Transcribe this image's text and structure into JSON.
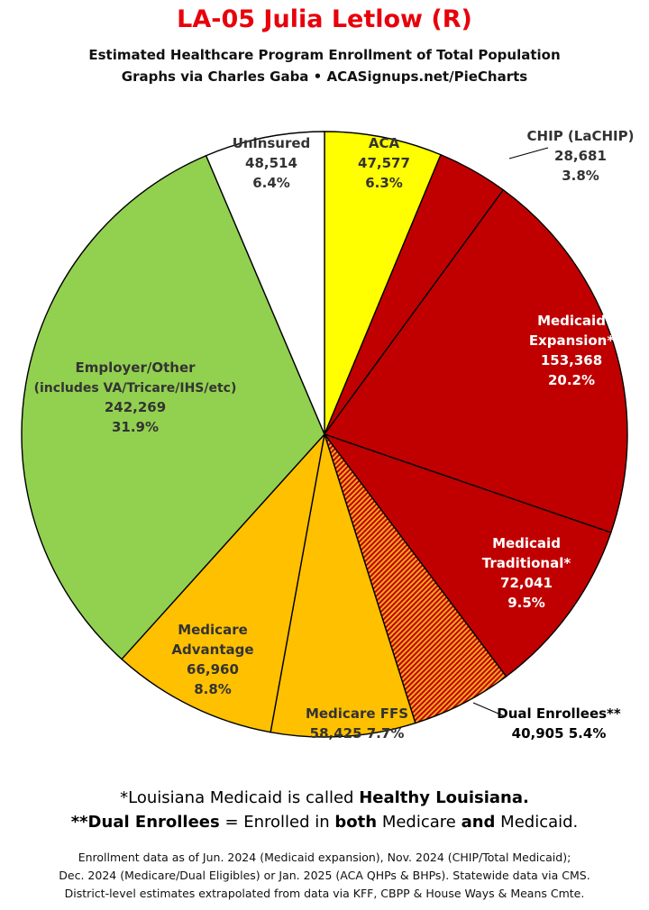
{
  "title": "LA-05 Julia Letlow (R)",
  "subtitle_line1": "Estimated Healthcare Program Enrollment of Total Population",
  "subtitle_line2": "Graphs via Charles Gaba  •  ACASignups.net/PieCharts",
  "chart_data": {
    "type": "pie",
    "start_angle": "top, clockwise",
    "slices": [
      {
        "name": "ACA",
        "label_lines": [
          "ACA"
        ],
        "value": 47577,
        "value_text": "47,577",
        "percent": "6.3%",
        "color": "#ffff00",
        "text_color": "#333333",
        "pattern": "none"
      },
      {
        "name": "CHIP (LaCHIP)",
        "label_lines": [
          "CHIP (LaCHIP)"
        ],
        "value": 28681,
        "value_text": "28,681",
        "percent": "3.8%",
        "color": "#c00000",
        "text_color": "#333333",
        "pattern": "none"
      },
      {
        "name": "Medicaid Expansion*",
        "label_lines": [
          "Medicaid",
          "Expansion*"
        ],
        "value": 153368,
        "value_text": "153,368",
        "percent": "20.2%",
        "color": "#c00000",
        "text_color": "#ffffff",
        "pattern": "none"
      },
      {
        "name": "Medicaid Traditional*",
        "label_lines": [
          "Medicaid",
          "Traditional*"
        ],
        "value": 72041,
        "value_text": "72,041",
        "percent": "9.5%",
        "color": "#c00000",
        "text_color": "#ffffff",
        "pattern": "none"
      },
      {
        "name": "Dual Enrollees**",
        "label_lines": [
          "Dual Enrollees**"
        ],
        "value": 40905,
        "value_text": "40,905",
        "percent": "5.4%",
        "color": "#c00000",
        "text_color": "#000000",
        "pattern": "stripes-orange"
      },
      {
        "name": "Medicare FFS",
        "label_lines": [
          "Medicare FFS"
        ],
        "value": 58425,
        "value_text": "58,425",
        "percent": "7.7%",
        "color": "#ffc000",
        "text_color": "#333333",
        "pattern": "none"
      },
      {
        "name": "Medicare Advantage",
        "label_lines": [
          "Medicare",
          "Advantage"
        ],
        "value": 66960,
        "value_text": "66,960",
        "percent": "8.8%",
        "color": "#ffc000",
        "text_color": "#333333",
        "pattern": "none"
      },
      {
        "name": "Employer/Other (includes VA/Tricare/IHS/etc)",
        "label_lines": [
          "Employer/Other",
          "(includes VA/Tricare/IHS/etc)"
        ],
        "value": 242269,
        "value_text": "242,269",
        "percent": "31.9%",
        "color": "#92d050",
        "text_color": "#333333",
        "pattern": "none"
      },
      {
        "name": "Uninsured",
        "label_lines": [
          "Uninsured"
        ],
        "value": 48514,
        "value_text": "48,514",
        "percent": "6.4%",
        "color": "#ffffff",
        "text_color": "#333333",
        "pattern": "none"
      }
    ]
  },
  "footnotes": {
    "line1_a": "*Louisiana Medicaid is called ",
    "line1_b": "Healthy Louisiana.",
    "line2_a": "**Dual Enrollees",
    "line2_b": " = Enrolled in ",
    "line2_c": "both",
    "line2_d": " Medicare ",
    "line2_e": "and",
    "line2_f": " Medicaid."
  },
  "source": {
    "line1": "Enrollment data as of Jun. 2024 (Medicaid expansion), Nov. 2024 (CHIP/Total Medicaid);",
    "line2": "Dec. 2024 (Medicare/Dual Eligibles) or Jan. 2025 (ACA QHPs & BHPs). Statewide data via CMS.",
    "line3": "District-level estimates extrapolated from data via KFF, CBPP & House Ways & Means Cmte."
  }
}
